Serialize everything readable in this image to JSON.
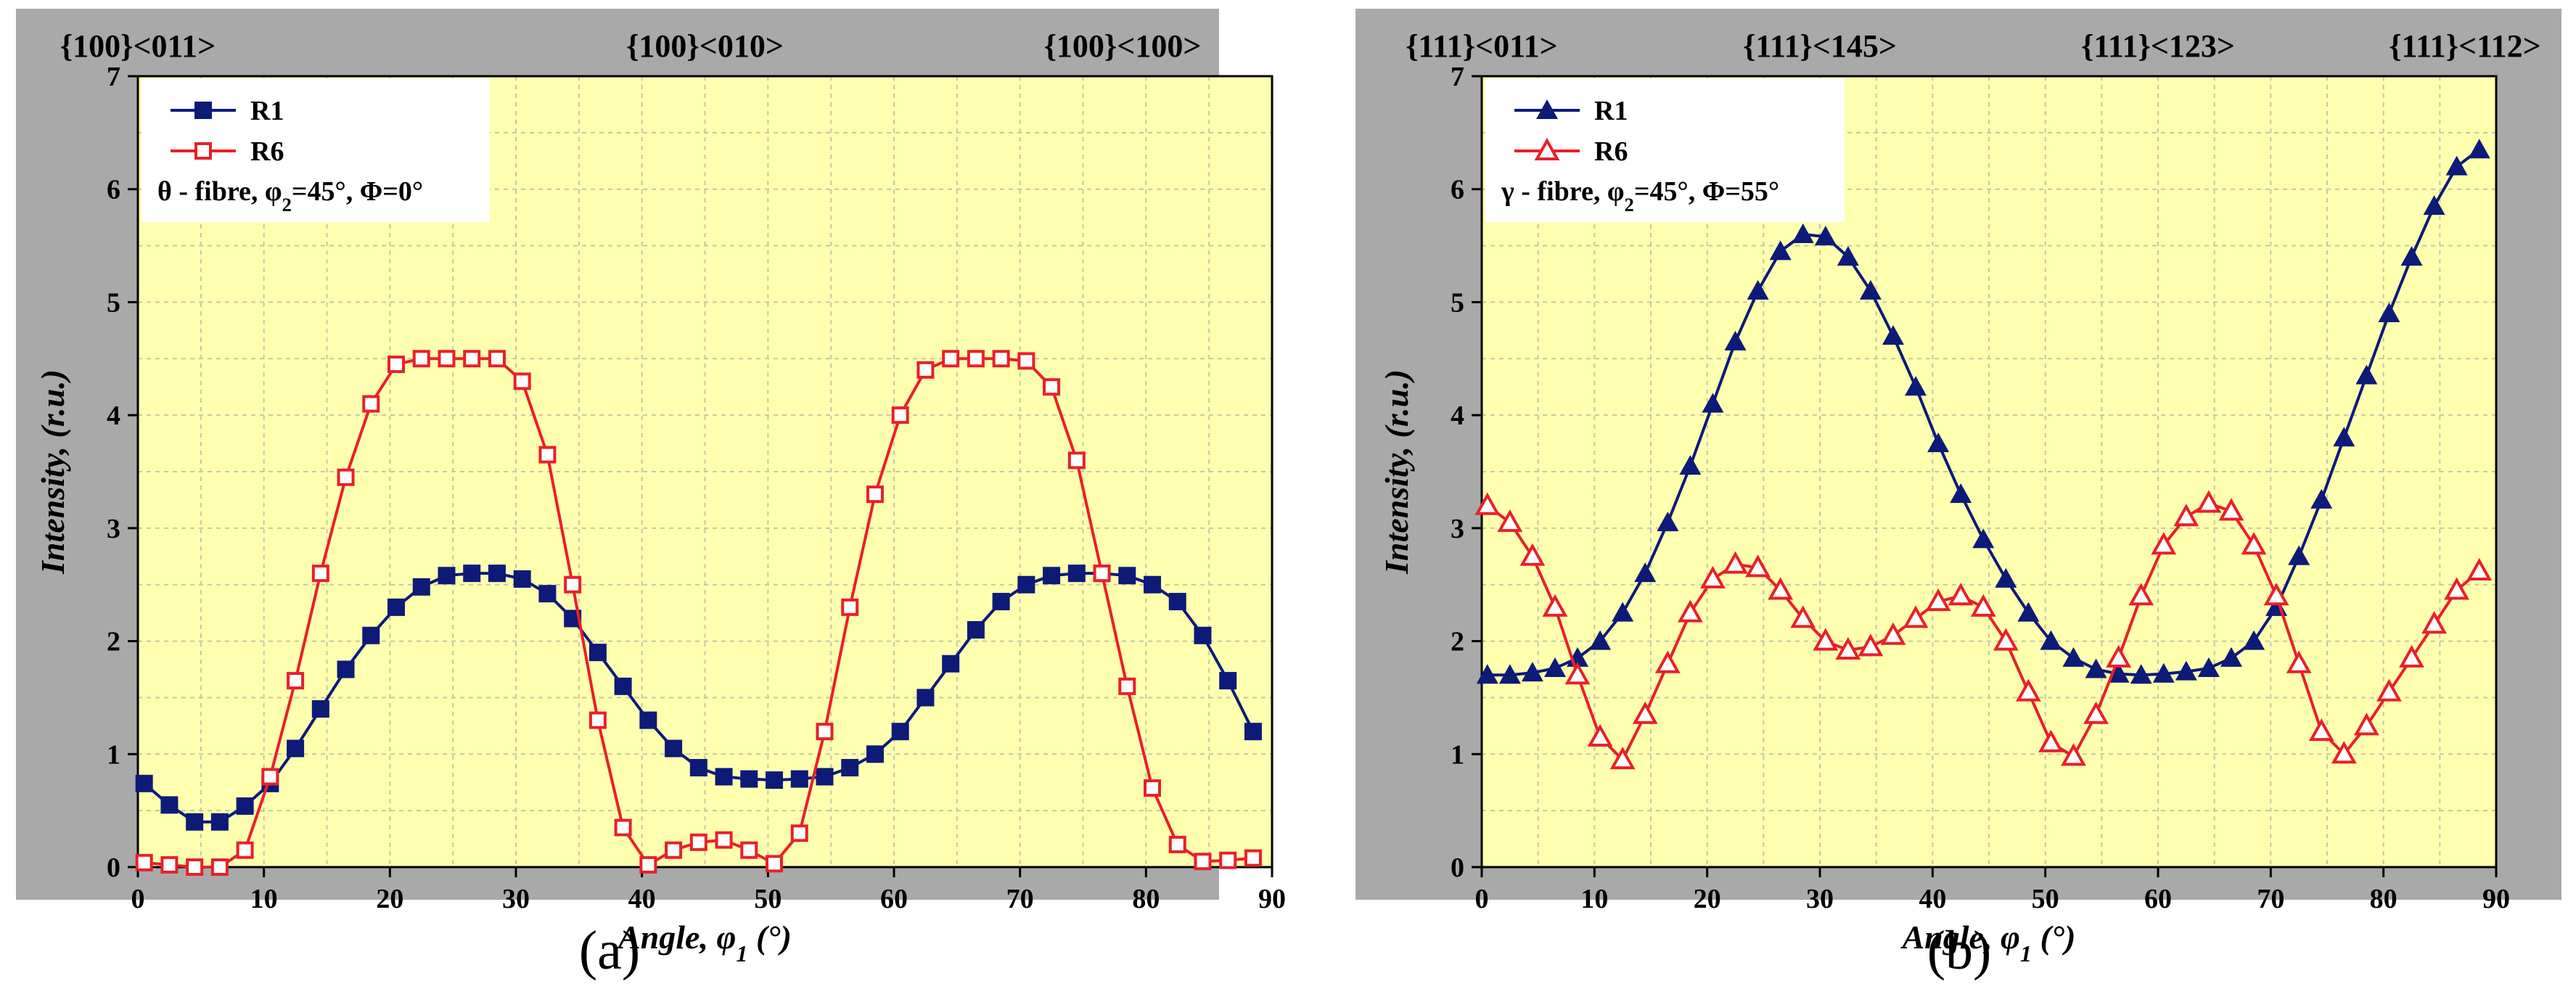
{
  "chart_data": [
    {
      "type": "line",
      "panel_label": "(a)",
      "title": "",
      "xlabel": "Angle, φ1 (°)",
      "ylabel": "Intensity, (r.u.)",
      "xlim": [
        0,
        90
      ],
      "ylim": [
        0,
        7
      ],
      "x_ticks": [
        0,
        10,
        20,
        30,
        40,
        50,
        60,
        70,
        80,
        90
      ],
      "y_ticks": [
        0,
        1,
        2,
        3,
        4,
        5,
        6,
        7
      ],
      "top_labels": [
        {
          "text": "{100}<011>",
          "x": 0
        },
        {
          "text": "{100}<010>",
          "x": 45
        },
        {
          "text": "{100}<100>",
          "x": 90
        }
      ],
      "legend": {
        "placement": "top-left",
        "note": "θ - fibre, φ2=45°, Φ=0°"
      },
      "series": [
        {
          "name": "R1",
          "color": "#0d1a78",
          "marker": "filled-square",
          "x": [
            0.5,
            2.5,
            4.5,
            6.5,
            8.5,
            10.5,
            12.5,
            14.5,
            16.5,
            18.5,
            20.5,
            22.5,
            24.5,
            26.5,
            28.5,
            30.5,
            32.5,
            34.5,
            36.5,
            38.5,
            40.5,
            42.5,
            44.5,
            46.5,
            48.5,
            50.5,
            52.5,
            54.5,
            56.5,
            58.5,
            60.5,
            62.5,
            64.5,
            66.5,
            68.5,
            70.5,
            72.5,
            74.5,
            76.5,
            78.5,
            80.5,
            82.5,
            84.5,
            86.5,
            88.5
          ],
          "y": [
            0.74,
            0.55,
            0.4,
            0.4,
            0.54,
            0.74,
            1.05,
            1.4,
            1.75,
            2.05,
            2.3,
            2.48,
            2.58,
            2.6,
            2.6,
            2.55,
            2.42,
            2.2,
            1.9,
            1.6,
            1.3,
            1.05,
            0.88,
            0.8,
            0.78,
            0.77,
            0.78,
            0.8,
            0.88,
            1.0,
            1.2,
            1.5,
            1.8,
            2.1,
            2.35,
            2.5,
            2.58,
            2.6,
            2.6,
            2.58,
            2.5,
            2.35,
            2.05,
            1.65,
            1.2
          ]
        },
        {
          "name": "R6",
          "color": "#e8202a",
          "marker": "open-square",
          "x": [
            0.5,
            2.5,
            4.5,
            6.5,
            8.5,
            10.5,
            12.5,
            14.5,
            16.5,
            18.5,
            20.5,
            22.5,
            24.5,
            26.5,
            28.5,
            30.5,
            32.5,
            34.5,
            36.5,
            38.5,
            40.5,
            42.5,
            44.5,
            46.5,
            48.5,
            50.5,
            52.5,
            54.5,
            56.5,
            58.5,
            60.5,
            62.5,
            64.5,
            66.5,
            68.5,
            70.5,
            72.5,
            74.5,
            76.5,
            78.5,
            80.5,
            82.5,
            84.5,
            86.5,
            88.5
          ],
          "y": [
            0.04,
            0.02,
            0.0,
            0.0,
            0.15,
            0.8,
            1.65,
            2.6,
            3.45,
            4.1,
            4.45,
            4.5,
            4.5,
            4.5,
            4.5,
            4.3,
            3.65,
            2.5,
            1.3,
            0.35,
            0.02,
            0.15,
            0.22,
            0.24,
            0.15,
            0.03,
            0.3,
            1.2,
            2.3,
            3.3,
            4.0,
            4.4,
            4.5,
            4.5,
            4.5,
            4.48,
            4.25,
            3.6,
            2.6,
            1.6,
            0.7,
            0.2,
            0.05,
            0.06,
            0.08
          ]
        }
      ]
    },
    {
      "type": "line",
      "panel_label": "(b)",
      "title": "",
      "xlabel": "Angle, φ1 (°)",
      "ylabel": "Intensity, (r.u.)",
      "xlim": [
        0,
        90
      ],
      "ylim": [
        0,
        7
      ],
      "x_ticks": [
        0,
        10,
        20,
        30,
        40,
        50,
        60,
        70,
        80,
        90
      ],
      "y_ticks": [
        0,
        1,
        2,
        3,
        4,
        5,
        6,
        7
      ],
      "top_labels": [
        {
          "text": "{111}<011>",
          "x": 0
        },
        {
          "text": "{111}<145>",
          "x": 30
        },
        {
          "text": "{111}<123>",
          "x": 60
        },
        {
          "text": "{111}<112>",
          "x": 90
        }
      ],
      "legend": {
        "placement": "top-left",
        "note": "γ - fibre, φ2=45°, Φ=55°"
      },
      "series": [
        {
          "name": "R1",
          "color": "#0d1a78",
          "marker": "filled-triangle",
          "x": [
            0.5,
            2.5,
            4.5,
            6.5,
            8.5,
            10.5,
            12.5,
            14.5,
            16.5,
            18.5,
            20.5,
            22.5,
            24.5,
            26.5,
            28.5,
            30.5,
            32.5,
            34.5,
            36.5,
            38.5,
            40.5,
            42.5,
            44.5,
            46.5,
            48.5,
            50.5,
            52.5,
            54.5,
            56.5,
            58.5,
            60.5,
            62.5,
            64.5,
            66.5,
            68.5,
            70.5,
            72.5,
            74.5,
            76.5,
            78.5,
            80.5,
            82.5,
            84.5,
            86.5,
            88.5
          ],
          "y": [
            1.7,
            1.7,
            1.72,
            1.76,
            1.85,
            2.0,
            2.25,
            2.6,
            3.05,
            3.55,
            4.1,
            4.65,
            5.1,
            5.45,
            5.6,
            5.58,
            5.4,
            5.1,
            4.7,
            4.25,
            3.75,
            3.3,
            2.9,
            2.55,
            2.25,
            2.0,
            1.85,
            1.75,
            1.71,
            1.7,
            1.71,
            1.73,
            1.76,
            1.85,
            2.0,
            2.3,
            2.75,
            3.25,
            3.8,
            4.35,
            4.9,
            5.4,
            5.85,
            6.2,
            6.35
          ]
        },
        {
          "name": "R6",
          "color": "#e8202a",
          "marker": "open-triangle",
          "x": [
            0.5,
            2.5,
            4.5,
            6.5,
            8.5,
            10.5,
            12.5,
            14.5,
            16.5,
            18.5,
            20.5,
            22.5,
            24.5,
            26.5,
            28.5,
            30.5,
            32.5,
            34.5,
            36.5,
            38.5,
            40.5,
            42.5,
            44.5,
            46.5,
            48.5,
            50.5,
            52.5,
            54.5,
            56.5,
            58.5,
            60.5,
            62.5,
            64.5,
            66.5,
            68.5,
            70.5,
            72.5,
            74.5,
            76.5,
            78.5,
            80.5,
            82.5,
            84.5,
            86.5,
            88.5
          ],
          "y": [
            3.2,
            3.05,
            2.75,
            2.3,
            1.7,
            1.15,
            0.95,
            1.35,
            1.8,
            2.25,
            2.55,
            2.68,
            2.65,
            2.45,
            2.2,
            2.0,
            1.92,
            1.95,
            2.05,
            2.2,
            2.35,
            2.4,
            2.3,
            2.0,
            1.55,
            1.1,
            0.98,
            1.35,
            1.85,
            2.4,
            2.85,
            3.1,
            3.22,
            3.15,
            2.85,
            2.4,
            1.8,
            1.2,
            1.0,
            1.25,
            1.55,
            1.85,
            2.15,
            2.45,
            2.62
          ]
        }
      ]
    }
  ]
}
